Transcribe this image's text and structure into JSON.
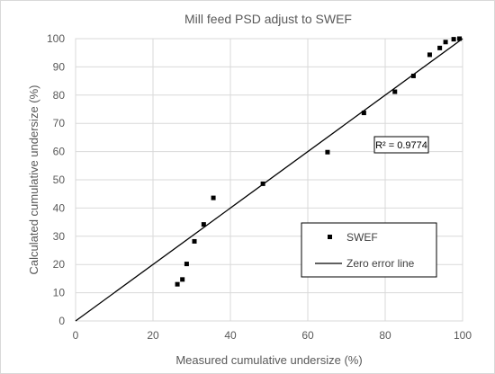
{
  "chart_data": {
    "type": "scatter",
    "title": "Mill feed PSD adjust to SWEF",
    "xlabel": "Measured cumulative undersize (%)",
    "ylabel": "Calculated cumulative undersize (%)",
    "xlim": [
      0,
      100
    ],
    "ylim": [
      0,
      100
    ],
    "xticks": [
      "0",
      "20",
      "40",
      "60",
      "80",
      "100"
    ],
    "yticks": [
      "0",
      "10",
      "20",
      "30",
      "40",
      "50",
      "60",
      "70",
      "80",
      "90",
      "100"
    ],
    "grid": true,
    "series": [
      {
        "name": "SWEF",
        "color": "#000000",
        "marker": "square",
        "points": [
          {
            "x": 26.3,
            "y": 13.0
          },
          {
            "x": 27.6,
            "y": 14.7
          },
          {
            "x": 28.7,
            "y": 20.2
          },
          {
            "x": 30.7,
            "y": 28.2
          },
          {
            "x": 33.1,
            "y": 34.2
          },
          {
            "x": 35.6,
            "y": 43.6
          },
          {
            "x": 48.4,
            "y": 48.6
          },
          {
            "x": 65.1,
            "y": 59.8
          },
          {
            "x": 74.5,
            "y": 73.7
          },
          {
            "x": 82.5,
            "y": 81.2
          },
          {
            "x": 87.3,
            "y": 86.8
          },
          {
            "x": 91.5,
            "y": 94.3
          },
          {
            "x": 94.1,
            "y": 96.7
          },
          {
            "x": 95.6,
            "y": 98.8
          },
          {
            "x": 97.7,
            "y": 99.8
          },
          {
            "x": 99.2,
            "y": 100.0
          }
        ]
      },
      {
        "name": "Zero error line",
        "color": "#000000",
        "style": "line",
        "points": [
          {
            "x": 0,
            "y": 0
          },
          {
            "x": 100,
            "y": 100
          }
        ]
      }
    ],
    "annotation": "R² = 0.9774",
    "legend_position": "bottom-right"
  }
}
